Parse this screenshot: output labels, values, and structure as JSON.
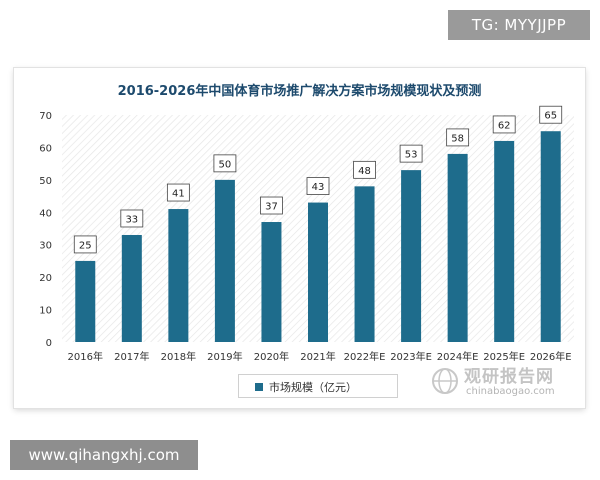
{
  "watermark_top": "TG: MYYJJPP",
  "watermark_bottom": "www.qihangxhj.com",
  "watermark_logo": {
    "brand": "观研报告网",
    "site": "chinabaogao.com"
  },
  "chart_data": {
    "type": "bar",
    "title": "2016-2026年中国体育市场推广解决方案市场规模现状及预测",
    "categories": [
      "2016年",
      "2017年",
      "2018年",
      "2019年",
      "2020年",
      "2021年",
      "2022年E",
      "2023年E",
      "2024年E",
      "2025年E",
      "2026年E"
    ],
    "series": [
      {
        "name": "市场规模（亿元）",
        "values": [
          25,
          33,
          41,
          50,
          37,
          43,
          48,
          53,
          58,
          62,
          65
        ],
        "color": "#1e6c8c"
      }
    ],
    "xlabel": "",
    "ylabel": "",
    "ylim": [
      0,
      70
    ],
    "yticks": [
      0,
      10,
      20,
      30,
      40,
      50,
      60,
      70
    ],
    "data_labels": true,
    "legend": "bottom",
    "plot_background": "hatched"
  }
}
